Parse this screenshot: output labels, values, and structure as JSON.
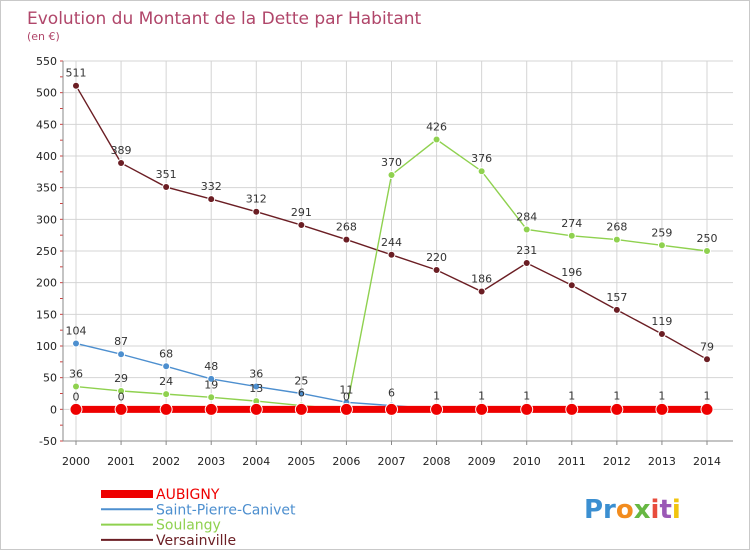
{
  "chart_data": {
    "type": "line",
    "title": "Evolution du Montant de la Dette par Habitant",
    "subtitle": "(en €)",
    "xlabel": "",
    "ylabel": "",
    "ylim": [
      -50,
      550
    ],
    "yticks": [
      -50,
      0,
      50,
      100,
      150,
      200,
      250,
      300,
      350,
      400,
      450,
      500,
      550
    ],
    "grid": true,
    "x": [
      "2000",
      "2001",
      "2002",
      "2003",
      "2004",
      "2005",
      "2006",
      "2007",
      "2008",
      "2009",
      "2010",
      "2011",
      "2012",
      "2013",
      "2014"
    ],
    "series": [
      {
        "name": "AUBIGNY",
        "color": "#ee0000",
        "values": [
          0,
          0,
          0,
          0,
          0,
          0,
          0,
          0,
          0,
          0,
          0,
          0,
          0,
          0,
          0
        ],
        "labels": [
          "0",
          "0",
          "",
          "",
          "",
          "",
          "",
          "",
          "",
          "",
          "",
          "",
          "",
          "",
          ""
        ]
      },
      {
        "name": "Saint-Pierre-Canivet",
        "color": "#4d8fcf",
        "values": [
          104,
          87,
          68,
          48,
          36,
          25,
          11,
          6,
          1,
          1,
          1,
          1,
          1,
          1,
          1
        ],
        "labels": [
          "104",
          "87",
          "68",
          "48",
          "36",
          "25",
          "11",
          "6",
          "1",
          "1",
          "1",
          "1",
          "1",
          "1",
          "1"
        ]
      },
      {
        "name": "Soulangy",
        "color": "#8fd14f",
        "values": [
          36,
          29,
          24,
          19,
          13,
          6,
          0,
          370,
          426,
          376,
          284,
          274,
          268,
          259,
          250
        ],
        "labels": [
          "36",
          "29",
          "24",
          "19",
          "13",
          "6",
          "0",
          "370",
          "426",
          "376",
          "284",
          "274",
          "268",
          "259",
          "250"
        ]
      },
      {
        "name": "Versainville",
        "color": "#6b1e24",
        "values": [
          511,
          389,
          351,
          332,
          312,
          291,
          268,
          244,
          220,
          186,
          231,
          196,
          157,
          119,
          79
        ],
        "labels": [
          "511",
          "389",
          "351",
          "332",
          "312",
          "291",
          "268",
          "244",
          "220",
          "186",
          "231",
          "196",
          "157",
          "119",
          "79"
        ]
      }
    ],
    "legend_position": "bottom-left"
  },
  "logo": {
    "text": "Proxiti"
  }
}
